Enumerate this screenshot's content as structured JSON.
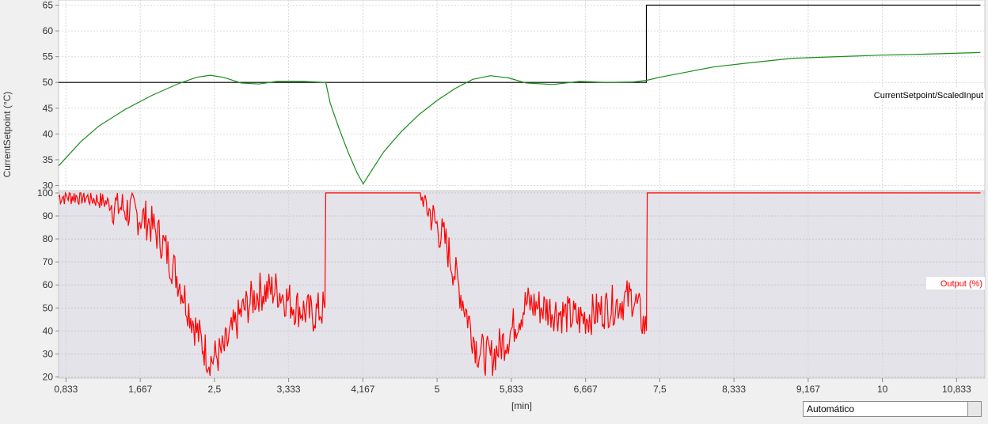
{
  "chart_data": {
    "type": "line",
    "xlabel": "[min]",
    "x_ticks": [
      "0,833",
      "1,667",
      "2,5",
      "3,333",
      "4,167",
      "5",
      "5,833",
      "6,667",
      "7,5",
      "8,333",
      "9,167",
      "10",
      "10,833"
    ],
    "x_tick_values": [
      0.833,
      1.667,
      2.5,
      3.333,
      4.167,
      5,
      5.833,
      6.667,
      7.5,
      8.333,
      9.167,
      10,
      10.833
    ],
    "xlim": [
      0.75,
      11.15
    ],
    "grid": true,
    "panels": [
      {
        "name": "top",
        "ylabel": "CurrentSetpoint (°C)",
        "ylim": [
          29,
          66
        ],
        "y_ticks": [
          30,
          35,
          40,
          45,
          50,
          55,
          60,
          65
        ],
        "label": "CurrentSetpoint/ScaledInput",
        "series": [
          {
            "color": "#000000",
            "step": true,
            "x": [
              0.75,
              7.35,
              7.35,
              11.1
            ],
            "y": [
              50,
              50,
              65,
              65
            ]
          },
          {
            "color": "#1a8c1a",
            "x": [
              0.75,
              1.0,
              1.2,
              1.5,
              1.8,
              2.1,
              2.3,
              2.45,
              2.6,
              2.8,
              3.0,
              3.2,
              3.5,
              3.75,
              3.8,
              3.9,
              4.0,
              4.1,
              4.17,
              4.25,
              4.4,
              4.6,
              4.8,
              5.0,
              5.2,
              5.4,
              5.6,
              5.8,
              6.0,
              6.3,
              6.6,
              6.9,
              7.2,
              7.35,
              7.5,
              7.8,
              8.1,
              8.5,
              9.0,
              9.5,
              10.0,
              10.5,
              11.1
            ],
            "y": [
              33.8,
              38.5,
              41.5,
              44.8,
              47.5,
              49.8,
              51,
              51.4,
              51,
              49.9,
              49.7,
              50.2,
              50.2,
              50,
              46,
              41,
              36.5,
              32.5,
              30.3,
              32.5,
              36.5,
              40.5,
              43.8,
              46.5,
              48.8,
              50.6,
              51.3,
              50.9,
              49.9,
              49.6,
              50.2,
              50,
              50.1,
              50.4,
              51,
              52,
              53,
              53.8,
              54.7,
              55,
              55.3,
              55.5,
              55.8
            ]
          }
        ]
      },
      {
        "name": "bottom",
        "ylim": [
          19.5,
          101
        ],
        "y_ticks": [
          20,
          30,
          40,
          50,
          60,
          70,
          80,
          90,
          100
        ],
        "label": "Output (%)",
        "series": [
          {
            "color": "#ff0000",
            "noisy": true,
            "x": [
              0.75,
              1.0,
              1.2,
              1.5,
              1.75,
              1.9,
              2.1,
              2.3,
              2.45,
              2.6,
              2.8,
              3.0,
              3.2,
              3.4,
              3.6,
              3.74,
              3.75,
              4.8,
              4.9,
              5.1,
              5.3,
              5.45,
              5.6,
              5.8,
              6.0,
              6.3,
              6.6,
              6.9,
              7.2,
              7.35,
              7.36,
              11.1
            ],
            "y": [
              98.5,
              98.5,
              97,
              93,
              88,
              80,
              62,
              40,
              27,
              31,
              48,
              57,
              58,
              51,
              47,
              50,
              100,
              100,
              93,
              78,
              52,
              32,
              28,
              38,
              52,
              49,
              45,
              50,
              55,
              40,
              100,
              100
            ]
          }
        ]
      }
    ]
  },
  "dropdown": {
    "value": "Automático"
  }
}
